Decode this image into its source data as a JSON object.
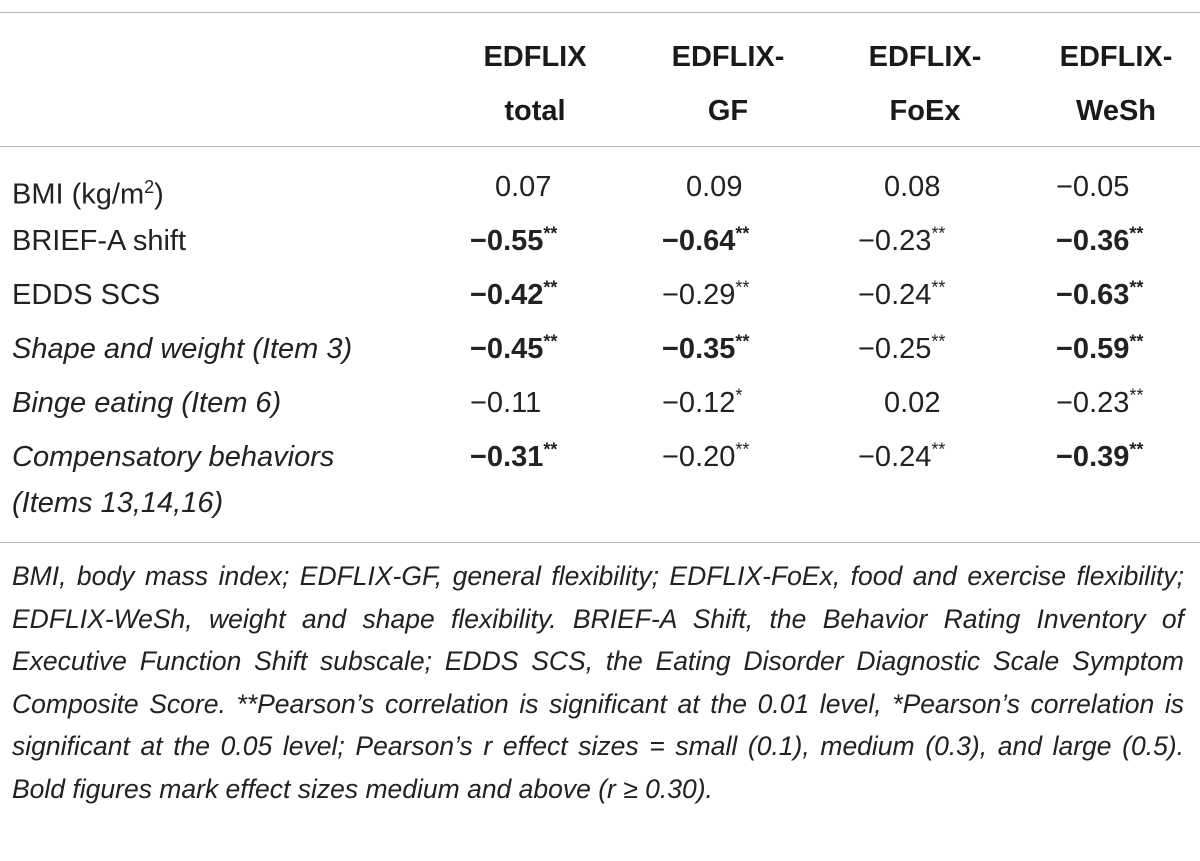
{
  "table": {
    "columns": [
      {
        "line1": "EDFLIX",
        "line2": "total"
      },
      {
        "line1": "EDFLIX-",
        "line2": "GF"
      },
      {
        "line1": "EDFLIX-",
        "line2": "FoEx"
      },
      {
        "line1": "EDFLIX-",
        "line2": "WeSh"
      }
    ],
    "rows": [
      {
        "label": "BMI (kg/m",
        "label_sup": "2",
        "label_after": ")",
        "italic": false,
        "cells": [
          {
            "value": "0.07",
            "sig": "",
            "bold": false
          },
          {
            "value": "0.09",
            "sig": "",
            "bold": false
          },
          {
            "value": "0.08",
            "sig": "",
            "bold": false
          },
          {
            "value": "−0.05",
            "sig": "",
            "bold": false
          }
        ]
      },
      {
        "label": "BRIEF-A shift",
        "label_sup": "",
        "label_after": "",
        "italic": false,
        "cells": [
          {
            "value": "−0.55",
            "sig": "**",
            "bold": true
          },
          {
            "value": "−0.64",
            "sig": "**",
            "bold": true
          },
          {
            "value": "−0.23",
            "sig": "**",
            "bold": false
          },
          {
            "value": "−0.36",
            "sig": "**",
            "bold": true
          }
        ]
      },
      {
        "label": "EDDS SCS",
        "label_sup": "",
        "label_after": "",
        "italic": false,
        "cells": [
          {
            "value": "−0.42",
            "sig": "**",
            "bold": true
          },
          {
            "value": "−0.29",
            "sig": "**",
            "bold": false
          },
          {
            "value": "−0.24",
            "sig": "**",
            "bold": false
          },
          {
            "value": "−0.63",
            "sig": "**",
            "bold": true
          }
        ]
      },
      {
        "label": "Shape and weight (Item 3)",
        "label_sup": "",
        "label_after": "",
        "italic": true,
        "cells": [
          {
            "value": "−0.45",
            "sig": "**",
            "bold": true
          },
          {
            "value": "−0.35",
            "sig": "**",
            "bold": true
          },
          {
            "value": "−0.25",
            "sig": "**",
            "bold": false
          },
          {
            "value": "−0.59",
            "sig": "**",
            "bold": true
          }
        ]
      },
      {
        "label": "Binge eating (Item 6)",
        "label_sup": "",
        "label_after": "",
        "italic": true,
        "cells": [
          {
            "value": "−0.11",
            "sig": "",
            "bold": false
          },
          {
            "value": "−0.12",
            "sig": "*",
            "bold": false
          },
          {
            "value": "0.02",
            "sig": "",
            "bold": false
          },
          {
            "value": "−0.23",
            "sig": "**",
            "bold": false
          }
        ]
      },
      {
        "label": "Compensatory behaviors",
        "label_line2": "(Items 13,14,16)",
        "label_sup": "",
        "label_after": "",
        "italic": true,
        "cells": [
          {
            "value": "−0.31",
            "sig": "**",
            "bold": true
          },
          {
            "value": "−0.20",
            "sig": "**",
            "bold": false
          },
          {
            "value": "−0.24",
            "sig": "**",
            "bold": false
          },
          {
            "value": "−0.39",
            "sig": "**",
            "bold": true
          }
        ]
      }
    ],
    "footnote": "BMI, body mass index; EDFLIX-GF, general flexibility; EDFLIX-FoEx, food and exercise flexibility; EDFLIX-WeSh, weight and shape flexibility. BRIEF-A Shift, the Behavior Rating Inventory of Executive Function Shift subscale; EDDS SCS, the Eating Disorder Diagnostic Scale Symptom Composite Score. **Pearson’s correlation is significant at the 0.01 level, *Pearson’s correlation is significant at the 0.05 level; Pearson’s r effect sizes = small (0.1), medium (0.3), and large (0.5). Bold figures mark effect sizes medium and above (r ≥ 0.30)."
  }
}
